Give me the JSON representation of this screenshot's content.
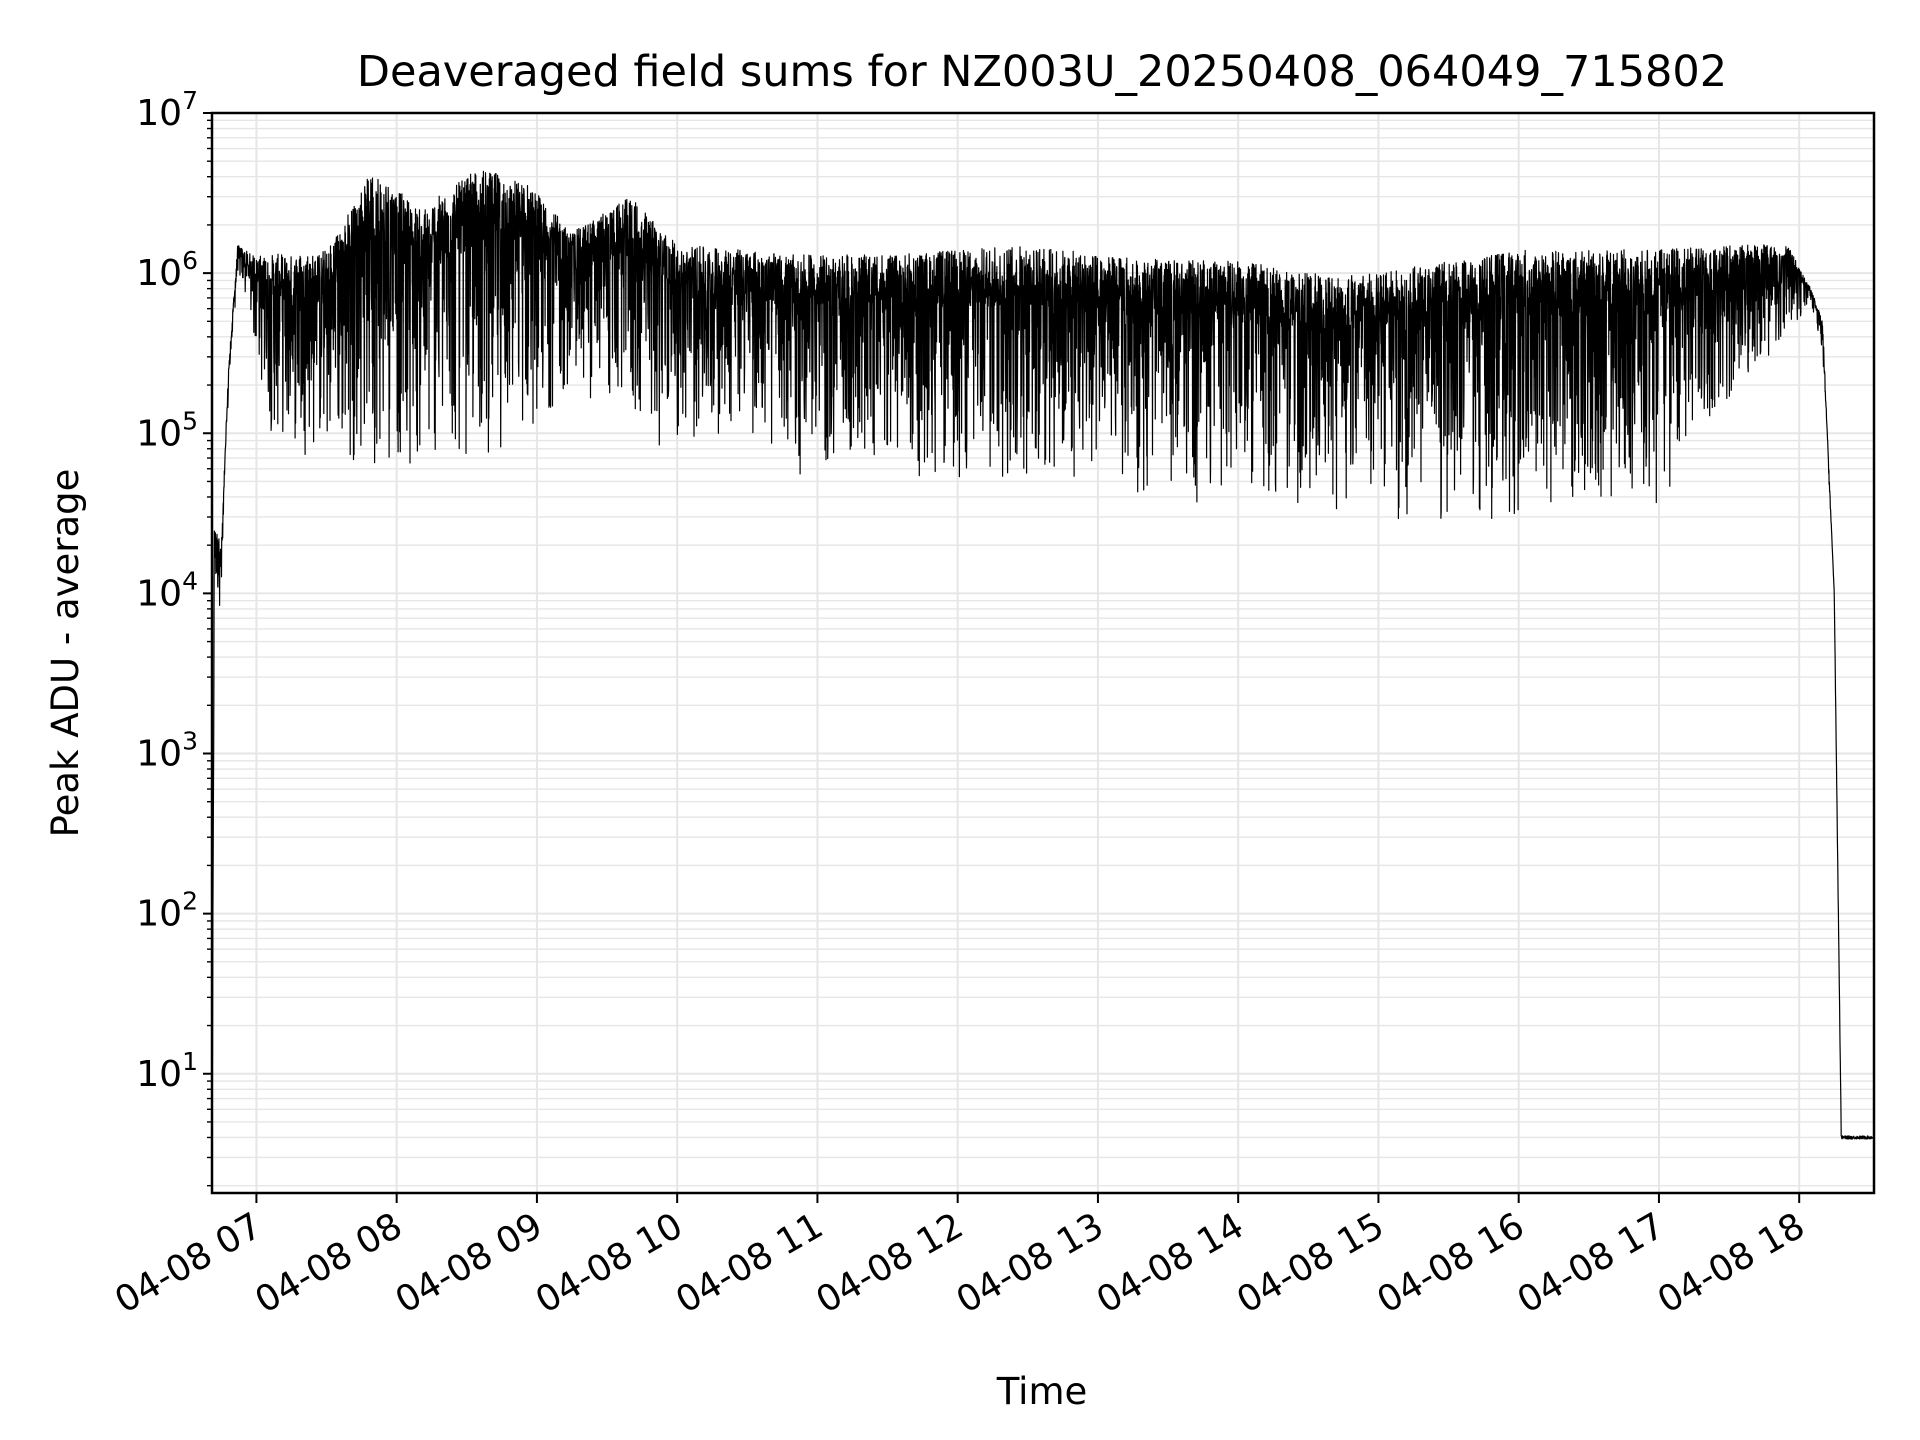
{
  "chart_data": {
    "type": "line",
    "title": "Deaveraged field sums for NZ003U_20250408_064049_715802",
    "xlabel": "Time",
    "ylabel": "Peak ADU - average",
    "yscale": "log",
    "ylim": [
      1.8,
      10000000
    ],
    "xlim": [
      "2025-04-08 06:41",
      "2025-04-08 18:32"
    ],
    "grid": true,
    "line_color": "#000000",
    "grid_color": "#e6e6e6",
    "x_ticks": [
      {
        "label": "04-08 07",
        "time": "2025-04-08 07:00"
      },
      {
        "label": "04-08 08",
        "time": "2025-04-08 08:00"
      },
      {
        "label": "04-08 09",
        "time": "2025-04-08 09:00"
      },
      {
        "label": "04-08 10",
        "time": "2025-04-08 10:00"
      },
      {
        "label": "04-08 11",
        "time": "2025-04-08 11:00"
      },
      {
        "label": "04-08 12",
        "time": "2025-04-08 12:00"
      },
      {
        "label": "04-08 13",
        "time": "2025-04-08 13:00"
      },
      {
        "label": "04-08 14",
        "time": "2025-04-08 14:00"
      },
      {
        "label": "04-08 15",
        "time": "2025-04-08 15:00"
      },
      {
        "label": "04-08 16",
        "time": "2025-04-08 16:00"
      },
      {
        "label": "04-08 17",
        "time": "2025-04-08 17:00"
      },
      {
        "label": "04-08 18",
        "time": "2025-04-08 18:00"
      }
    ],
    "y_ticks": [
      {
        "base": "10",
        "exp": "1",
        "value": 10
      },
      {
        "base": "10",
        "exp": "2",
        "value": 100
      },
      {
        "base": "10",
        "exp": "3",
        "value": 1000
      },
      {
        "base": "10",
        "exp": "4",
        "value": 10000
      },
      {
        "base": "10",
        "exp": "5",
        "value": 100000
      },
      {
        "base": "10",
        "exp": "6",
        "value": 1000000
      },
      {
        "base": "10",
        "exp": "7",
        "value": 10000000
      }
    ],
    "series": [
      {
        "envelope": [
          {
            "time": "2025-04-08 06:41",
            "low": 2,
            "high": 2
          },
          {
            "time": "2025-04-08 06:42",
            "low": 10000,
            "high": 27000
          },
          {
            "time": "2025-04-08 06:45",
            "low": 7500,
            "high": 20000
          },
          {
            "time": "2025-04-08 06:48",
            "low": 150000,
            "high": 250000
          },
          {
            "time": "2025-04-08 06:52",
            "low": 1000000,
            "high": 1500000
          },
          {
            "time": "2025-04-08 06:58",
            "low": 400000,
            "high": 1300000
          },
          {
            "time": "2025-04-08 07:05",
            "low": 95000,
            "high": 1300000
          },
          {
            "time": "2025-04-08 07:30",
            "low": 60000,
            "high": 1400000
          },
          {
            "time": "2025-04-08 07:50",
            "low": 60000,
            "high": 4500000
          },
          {
            "time": "2025-04-08 08:10",
            "low": 55000,
            "high": 2500000
          },
          {
            "time": "2025-04-08 08:35",
            "low": 60000,
            "high": 4500000
          },
          {
            "time": "2025-04-08 08:55",
            "low": 90000,
            "high": 3800000
          },
          {
            "time": "2025-04-08 09:15",
            "low": 180000,
            "high": 1800000
          },
          {
            "time": "2025-04-08 09:40",
            "low": 100000,
            "high": 3000000
          },
          {
            "time": "2025-04-08 10:00",
            "low": 70000,
            "high": 1500000
          },
          {
            "time": "2025-04-08 10:30",
            "low": 100000,
            "high": 1400000
          },
          {
            "time": "2025-04-08 10:45",
            "low": 50000,
            "high": 1300000
          },
          {
            "time": "2025-04-08 11:30",
            "low": 45000,
            "high": 1300000
          },
          {
            "time": "2025-04-08 12:00",
            "low": 45000,
            "high": 1400000
          },
          {
            "time": "2025-04-08 12:30",
            "low": 45000,
            "high": 1500000
          },
          {
            "time": "2025-04-08 13:00",
            "low": 40000,
            "high": 1300000
          },
          {
            "time": "2025-04-08 13:30",
            "low": 38000,
            "high": 1200000
          },
          {
            "time": "2025-04-08 14:00",
            "low": 35000,
            "high": 1200000
          },
          {
            "time": "2025-04-08 14:30",
            "low": 32000,
            "high": 1000000
          },
          {
            "time": "2025-04-08 15:00",
            "low": 28000,
            "high": 1000000
          },
          {
            "time": "2025-04-08 15:30",
            "low": 28000,
            "high": 1200000
          },
          {
            "time": "2025-04-08 16:00",
            "low": 28000,
            "high": 1400000
          },
          {
            "time": "2025-04-08 16:30",
            "low": 30000,
            "high": 1400000
          },
          {
            "time": "2025-04-08 17:00",
            "low": 30000,
            "high": 1400000
          },
          {
            "time": "2025-04-08 17:30",
            "low": 150000,
            "high": 1500000
          },
          {
            "time": "2025-04-08 17:55",
            "low": 400000,
            "high": 1500000
          },
          {
            "time": "2025-04-08 18:05",
            "low": 600000,
            "high": 800000
          },
          {
            "time": "2025-04-08 18:10",
            "low": 300000,
            "high": 500000
          },
          {
            "time": "2025-04-08 18:15",
            "low": 10000,
            "high": 10000
          },
          {
            "time": "2025-04-08 18:18",
            "low": 4,
            "high": 4
          },
          {
            "time": "2025-04-08 18:32",
            "low": 4,
            "high": 4
          }
        ]
      }
    ]
  }
}
